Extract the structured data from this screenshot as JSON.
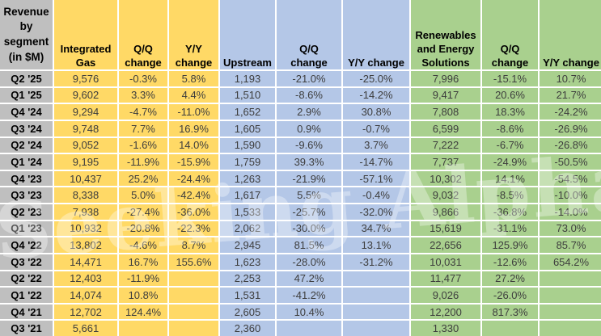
{
  "chart_data": {
    "type": "table",
    "title": "Revenue by segment (in $M)",
    "corner_header": "Revenue\nby\nsegment\n(in $M)",
    "corner_color": "#BFBFBF",
    "row_label_color": "#BFBFBF",
    "grid_color": "#FFFFFF",
    "column_groups": [
      {
        "name": "Integrated Gas",
        "color": "#FFD966",
        "columns": [
          "Integrated\nGas",
          "Q/Q\nchange",
          "Y/Y\nchange"
        ]
      },
      {
        "name": "Upstream",
        "color": "#B4C7E7",
        "columns": [
          "Upstream",
          "Q/Q\nchange",
          "Y/Y change"
        ]
      },
      {
        "name": "Renewables and Energy Solutions",
        "color": "#A9D08E",
        "columns": [
          "Renewables\nand Energy\nSolutions",
          "Q/Q\nchange",
          "Y/Y change"
        ]
      }
    ],
    "rows": [
      {
        "label": "Q2 '25",
        "cells": [
          "9,576",
          "-0.3%",
          "5.8%",
          "1,193",
          "-21.0%",
          "-25.0%",
          "7,996",
          "-15.1%",
          "10.7%"
        ]
      },
      {
        "label": "Q1 '25",
        "cells": [
          "9,602",
          "3.3%",
          "4.4%",
          "1,510",
          "-8.6%",
          "-14.2%",
          "9,417",
          "20.6%",
          "21.7%"
        ]
      },
      {
        "label": "Q4 '24",
        "cells": [
          "9,294",
          "-4.7%",
          "-11.0%",
          "1,652",
          "2.9%",
          "30.8%",
          "7,808",
          "18.3%",
          "-24.2%"
        ]
      },
      {
        "label": "Q3 '24",
        "cells": [
          "9,748",
          "7.7%",
          "16.9%",
          "1,605",
          "0.9%",
          "-0.7%",
          "6,599",
          "-8.6%",
          "-26.9%"
        ]
      },
      {
        "label": "Q2 '24",
        "cells": [
          "9,052",
          "-1.6%",
          "14.0%",
          "1,590",
          "-9.6%",
          "3.7%",
          "7,222",
          "-6.7%",
          "-26.8%"
        ]
      },
      {
        "label": "Q1 '24",
        "cells": [
          "9,195",
          "-11.9%",
          "-15.9%",
          "1,759",
          "39.3%",
          "-14.7%",
          "7,737",
          "-24.9%",
          "-50.5%"
        ]
      },
      {
        "label": "Q4 '23",
        "cells": [
          "10,437",
          "25.2%",
          "-24.4%",
          "1,263",
          "-21.9%",
          "-57.1%",
          "10,302",
          "14.1%",
          "-54.5%"
        ]
      },
      {
        "label": "Q3 '23",
        "cells": [
          "8,338",
          "5.0%",
          "-42.4%",
          "1,617",
          "5.5%",
          "-0.4%",
          "9,032",
          "-8.5%",
          "-10.0%"
        ]
      },
      {
        "label": "Q2 '23",
        "cells": [
          "7,938",
          "-27.4%",
          "-36.0%",
          "1,533",
          "-25.7%",
          "-32.0%",
          "9,866",
          "-36.8%",
          "-14.0%"
        ]
      },
      {
        "label": "Q1 '23",
        "cells": [
          "10,932",
          "-20.8%",
          "-22.3%",
          "2,062",
          "-30.0%",
          "34.7%",
          "15,619",
          "-31.1%",
          "73.0%"
        ]
      },
      {
        "label": "Q4 '22",
        "cells": [
          "13,802",
          "-4.6%",
          "8.7%",
          "2,945",
          "81.5%",
          "13.1%",
          "22,656",
          "125.9%",
          "85.7%"
        ]
      },
      {
        "label": "Q3 '22",
        "cells": [
          "14,471",
          "16.7%",
          "155.6%",
          "1,623",
          "-28.0%",
          "-31.2%",
          "10,031",
          "-12.6%",
          "654.2%"
        ]
      },
      {
        "label": "Q2 '22",
        "cells": [
          "12,403",
          "-11.9%",
          "",
          "2,253",
          "47.2%",
          "",
          "11,477",
          "27.2%",
          ""
        ]
      },
      {
        "label": "Q1 '22",
        "cells": [
          "14,074",
          "10.8%",
          "",
          "1,531",
          "-41.2%",
          "",
          "9,026",
          "-26.0%",
          ""
        ]
      },
      {
        "label": "Q4 '21",
        "cells": [
          "12,702",
          "124.4%",
          "",
          "2,605",
          "10.4%",
          "",
          "12,200",
          "817.3%",
          ""
        ]
      },
      {
        "label": "Q3 '21",
        "cells": [
          "5,661",
          "",
          "",
          "2,360",
          "",
          "",
          "1,330",
          "",
          ""
        ]
      }
    ]
  },
  "watermark": {
    "text": "Seeking Alpha",
    "logo": "α"
  }
}
